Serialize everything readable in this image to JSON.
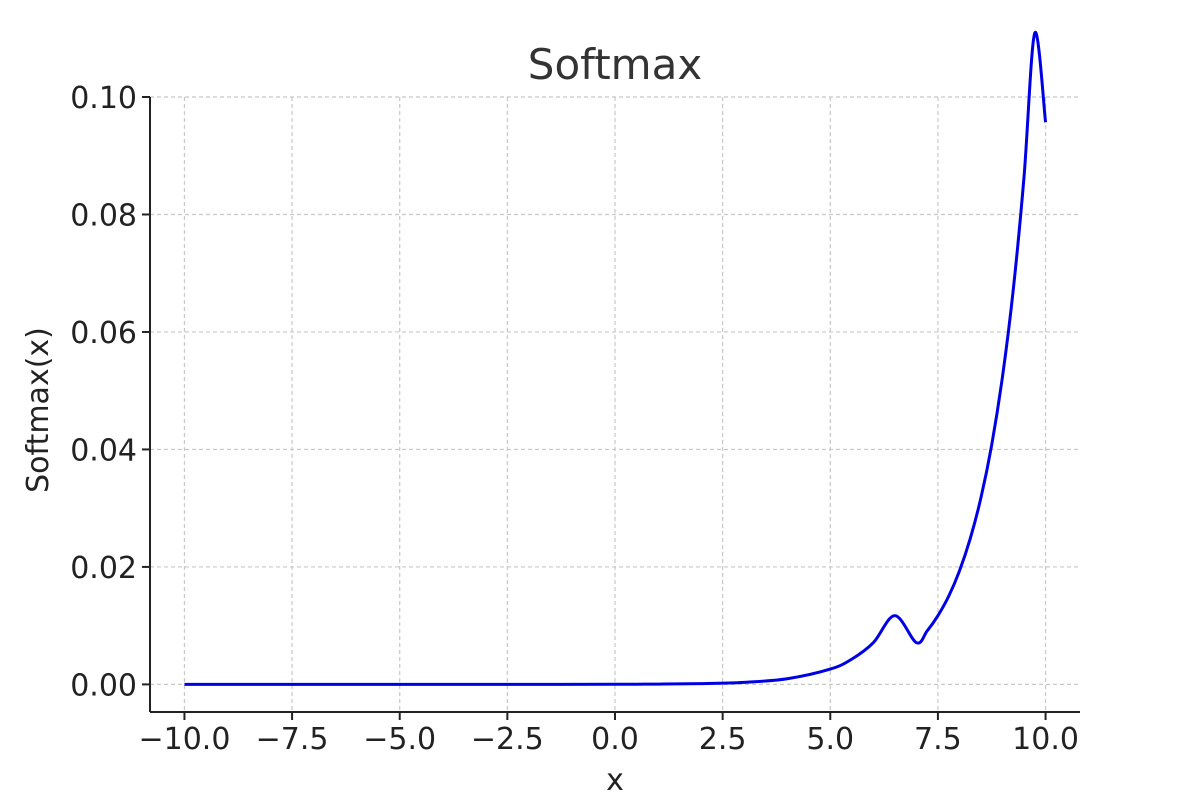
{
  "chart_data": {
    "type": "line",
    "title": "Softmax",
    "xlabel": "x",
    "ylabel": "Softmax(x)",
    "xlim": [
      -10.8,
      10.8
    ],
    "ylim": [
      -0.0047,
      0.1
    ],
    "xticks": [
      -10.0,
      -7.5,
      -5.0,
      -2.5,
      0.0,
      2.5,
      5.0,
      7.5,
      10.0
    ],
    "xtick_labels": [
      "−10.0",
      "−7.5",
      "−5.0",
      "−2.5",
      "0.0",
      "2.5",
      "5.0",
      "7.5",
      "10.0"
    ],
    "yticks": [
      0.0,
      0.02,
      0.04,
      0.06,
      0.08,
      0.1
    ],
    "ytick_labels": [
      "0.00",
      "0.02",
      "0.04",
      "0.06",
      "0.08",
      "0.10"
    ],
    "grid": true,
    "series": [
      {
        "color": "#0000e6",
        "x": [
          -10,
          -8,
          -6,
          -4,
          -2,
          0,
          1,
          2,
          3,
          4,
          5,
          5.5,
          6,
          6.5,
          7,
          7.25,
          7.5,
          7.75,
          8,
          8.25,
          8.5,
          8.75,
          9,
          9.25,
          9.5,
          9.75,
          10
        ],
        "y": [
          0.0,
          0.0,
          0.0,
          0.0,
          0.0,
          2e-05,
          5e-05,
          0.00013,
          0.00035,
          0.00096,
          0.0026,
          0.0043,
          0.0071,
          0.0117,
          0.0071,
          0.0091,
          0.0117,
          0.015,
          0.0193,
          0.0248,
          0.0318,
          0.0408,
          0.0524,
          0.0672,
          0.0864,
          0.1109,
          0.0957
        ]
      }
    ]
  }
}
